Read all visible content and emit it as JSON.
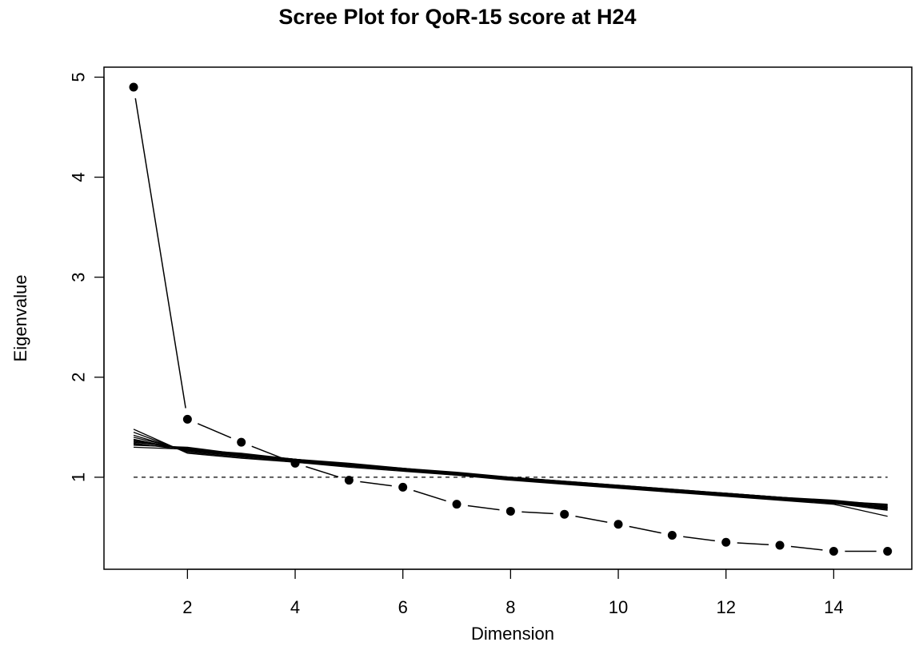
{
  "chart_data": {
    "type": "line",
    "title": "Scree Plot for QoR-15 score at H24",
    "xlabel": "Dimension",
    "ylabel": "Eigenvalue",
    "xlim": [
      0.45,
      15.45
    ],
    "ylim": [
      0.08,
      5.1
    ],
    "x_ticks": [
      2,
      4,
      6,
      8,
      10,
      12,
      14
    ],
    "y_ticks": [
      1,
      2,
      3,
      4,
      5
    ],
    "grid": false,
    "legend": "none",
    "reference_line": {
      "y": 1,
      "style": "dashed"
    },
    "x": [
      1,
      2,
      3,
      4,
      5,
      6,
      7,
      8,
      9,
      10,
      11,
      12,
      13,
      14,
      15
    ],
    "series": [
      {
        "style": "observed",
        "values": [
          4.9,
          1.58,
          1.35,
          1.14,
          0.97,
          0.9,
          0.73,
          0.66,
          0.63,
          0.53,
          0.42,
          0.35,
          0.32,
          0.26,
          0.26
        ]
      },
      {
        "style": "simulated",
        "values": [
          1.36,
          1.28,
          1.22,
          1.17,
          1.12,
          1.08,
          1.04,
          0.99,
          0.95,
          0.91,
          0.87,
          0.84,
          0.8,
          0.76,
          0.7
        ]
      },
      {
        "style": "simulated",
        "values": [
          1.42,
          1.26,
          1.21,
          1.16,
          1.12,
          1.07,
          1.03,
          0.98,
          0.94,
          0.9,
          0.86,
          0.82,
          0.78,
          0.74,
          0.69
        ]
      },
      {
        "style": "simulated",
        "values": [
          1.33,
          1.29,
          1.23,
          1.18,
          1.13,
          1.09,
          1.04,
          1.0,
          0.96,
          0.92,
          0.88,
          0.84,
          0.8,
          0.76,
          0.72
        ]
      },
      {
        "style": "simulated",
        "values": [
          1.38,
          1.27,
          1.21,
          1.16,
          1.11,
          1.07,
          1.03,
          0.98,
          0.94,
          0.9,
          0.86,
          0.82,
          0.78,
          0.75,
          0.68
        ]
      },
      {
        "style": "simulated",
        "values": [
          1.3,
          1.28,
          1.24,
          1.18,
          1.13,
          1.08,
          1.04,
          1.0,
          0.95,
          0.91,
          0.87,
          0.83,
          0.79,
          0.75,
          0.71
        ]
      },
      {
        "style": "simulated",
        "values": [
          1.45,
          1.25,
          1.2,
          1.15,
          1.11,
          1.07,
          1.02,
          0.98,
          0.94,
          0.9,
          0.85,
          0.82,
          0.78,
          0.74,
          0.67
        ]
      },
      {
        "style": "simulated",
        "values": [
          1.35,
          1.29,
          1.22,
          1.17,
          1.12,
          1.08,
          1.04,
          0.99,
          0.95,
          0.91,
          0.87,
          0.83,
          0.79,
          0.76,
          0.73
        ]
      },
      {
        "style": "simulated",
        "values": [
          1.4,
          1.27,
          1.22,
          1.16,
          1.12,
          1.07,
          1.03,
          0.99,
          0.94,
          0.9,
          0.86,
          0.83,
          0.79,
          0.75,
          0.7
        ]
      },
      {
        "style": "simulated",
        "values": [
          1.32,
          1.3,
          1.23,
          1.18,
          1.14,
          1.09,
          1.05,
          1.0,
          0.96,
          0.92,
          0.88,
          0.84,
          0.8,
          0.77,
          0.72
        ]
      },
      {
        "style": "simulated",
        "values": [
          1.48,
          1.24,
          1.19,
          1.15,
          1.1,
          1.06,
          1.02,
          0.97,
          0.93,
          0.89,
          0.85,
          0.81,
          0.77,
          0.73,
          0.61
        ]
      },
      {
        "style": "simulated",
        "values": [
          1.37,
          1.28,
          1.22,
          1.17,
          1.13,
          1.08,
          1.03,
          0.99,
          0.95,
          0.91,
          0.87,
          0.83,
          0.79,
          0.75,
          0.69
        ]
      },
      {
        "style": "simulated",
        "values": [
          1.34,
          1.27,
          1.23,
          1.18,
          1.12,
          1.08,
          1.04,
          1.0,
          0.95,
          0.91,
          0.86,
          0.83,
          0.79,
          0.76,
          0.7
        ]
      }
    ]
  }
}
